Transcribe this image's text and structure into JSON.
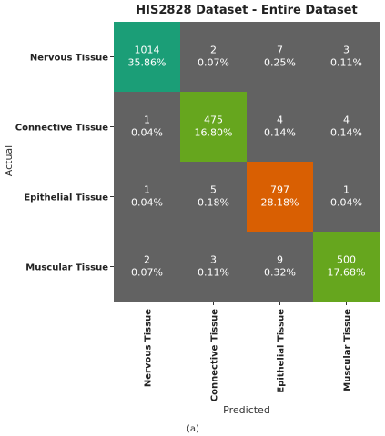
{
  "chart_data": {
    "type": "heatmap",
    "title": "HIS2828 Dataset - Entire Dataset",
    "xlabel": "Predicted",
    "ylabel": "Actual",
    "rows": [
      "Nervous Tissue",
      "Connective Tissue",
      "Epithelial Tissue",
      "Muscular Tissue"
    ],
    "columns": [
      "Nervous Tissue",
      "Connective Tissue",
      "Epithelial Tissue",
      "Muscular Tissue"
    ],
    "counts": [
      [
        1014,
        2,
        7,
        3
      ],
      [
        1,
        475,
        4,
        4
      ],
      [
        1,
        5,
        797,
        1
      ],
      [
        2,
        3,
        9,
        500
      ]
    ],
    "percents": [
      [
        "35.86%",
        "0.07%",
        "0.25%",
        "0.11%"
      ],
      [
        "0.04%",
        "16.80%",
        "0.14%",
        "0.14%"
      ],
      [
        "0.04%",
        "0.18%",
        "28.18%",
        "0.04%"
      ],
      [
        "0.07%",
        "0.11%",
        "0.32%",
        "17.68%"
      ]
    ],
    "colors": {
      "off_diagonal": "#626262",
      "diagonal": [
        "#1b9e77",
        "#66a61e",
        "#d95f02",
        "#66a61e"
      ]
    }
  },
  "caption": "(a)"
}
